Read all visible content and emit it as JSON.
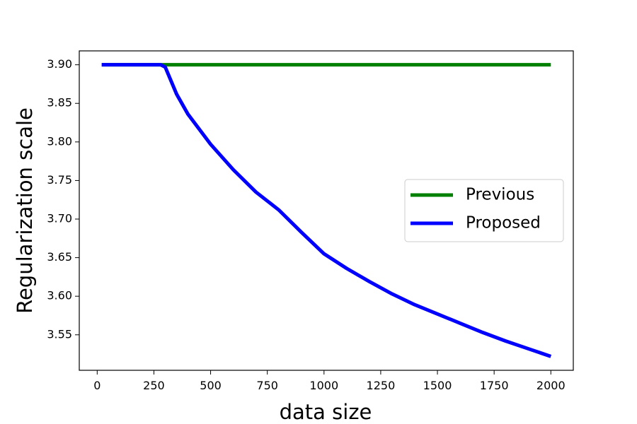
{
  "chart_data": {
    "type": "line",
    "xlabel": "data size",
    "ylabel": "Regularization scale",
    "x": [
      20,
      100,
      200,
      280,
      300,
      350,
      400,
      500,
      600,
      700,
      800,
      900,
      1000,
      1100,
      1200,
      1300,
      1400,
      1500,
      1600,
      1700,
      1800,
      1900,
      2000
    ],
    "series": [
      {
        "name": "Previous",
        "color": "#008000",
        "values": [
          3.9,
          3.9,
          3.9,
          3.9,
          3.9,
          3.9,
          3.9,
          3.9,
          3.9,
          3.9,
          3.9,
          3.9,
          3.9,
          3.9,
          3.9,
          3.9,
          3.9,
          3.9,
          3.9,
          3.9,
          3.9,
          3.9,
          3.9
        ]
      },
      {
        "name": "Proposed",
        "color": "#0000ff",
        "values": [
          3.9,
          3.9,
          3.9,
          3.9,
          3.897,
          3.862,
          3.836,
          3.797,
          3.764,
          3.735,
          3.712,
          3.683,
          3.655,
          3.636,
          3.619,
          3.603,
          3.589,
          3.577,
          3.565,
          3.553,
          3.542,
          3.532,
          3.522
        ]
      }
    ],
    "xlim": [
      -79,
      2099
    ],
    "ylim": [
      3.504,
      3.918
    ],
    "xticks": [
      0,
      250,
      500,
      750,
      1000,
      1250,
      1500,
      1750,
      2000
    ],
    "yticks": [
      {
        "value": 3.55,
        "label": "3.55"
      },
      {
        "value": 3.6,
        "label": "3.60"
      },
      {
        "value": 3.65,
        "label": "3.65"
      },
      {
        "value": 3.7,
        "label": "3.70"
      },
      {
        "value": 3.75,
        "label": "3.75"
      },
      {
        "value": 3.8,
        "label": "3.80"
      },
      {
        "value": 3.85,
        "label": "3.85"
      },
      {
        "value": 3.9,
        "label": "3.90"
      }
    ],
    "grid": false,
    "legend_position": "center right"
  }
}
